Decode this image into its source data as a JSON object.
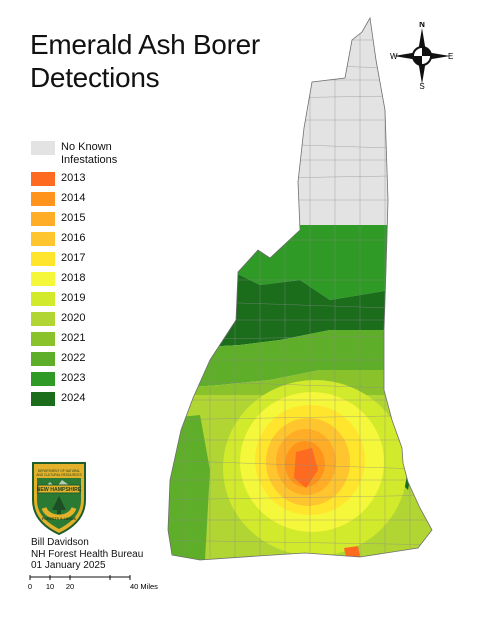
{
  "title_line1": "Emerald Ash Borer",
  "title_line2": "Detections",
  "legend": [
    {
      "label": "No Known Infestations",
      "color": "#e3e3e3"
    },
    {
      "label": "2013",
      "color": "#ff6a21"
    },
    {
      "label": "2014",
      "color": "#ff931c"
    },
    {
      "label": "2015",
      "color": "#ffad26"
    },
    {
      "label": "2016",
      "color": "#ffc52e"
    },
    {
      "label": "2017",
      "color": "#ffe52c"
    },
    {
      "label": "2018",
      "color": "#f5f73a"
    },
    {
      "label": "2019",
      "color": "#d2ea2c"
    },
    {
      "label": "2020",
      "color": "#b1d634"
    },
    {
      "label": "2021",
      "color": "#8ac22b"
    },
    {
      "label": "2022",
      "color": "#5fae2a"
    },
    {
      "label": "2023",
      "color": "#2f9a25"
    },
    {
      "label": "2024",
      "color": "#1b6d1c"
    }
  ],
  "credits": {
    "author": "Bill Davidson",
    "org": "NH Forest Health Bureau",
    "date": "01 January 2025"
  },
  "scale": {
    "ticks": [
      "0",
      "10",
      "20",
      "40 Miles"
    ]
  },
  "compass": {
    "n": "N",
    "s": "S",
    "e": "E",
    "w": "W"
  },
  "badge": {
    "top_text": "DEPARTMENT OF NATURAL AND CULTURAL RESOURCES",
    "banner": "NEW HAMPSHIRE",
    "bottom_text": "FORESTS & LANDS"
  }
}
